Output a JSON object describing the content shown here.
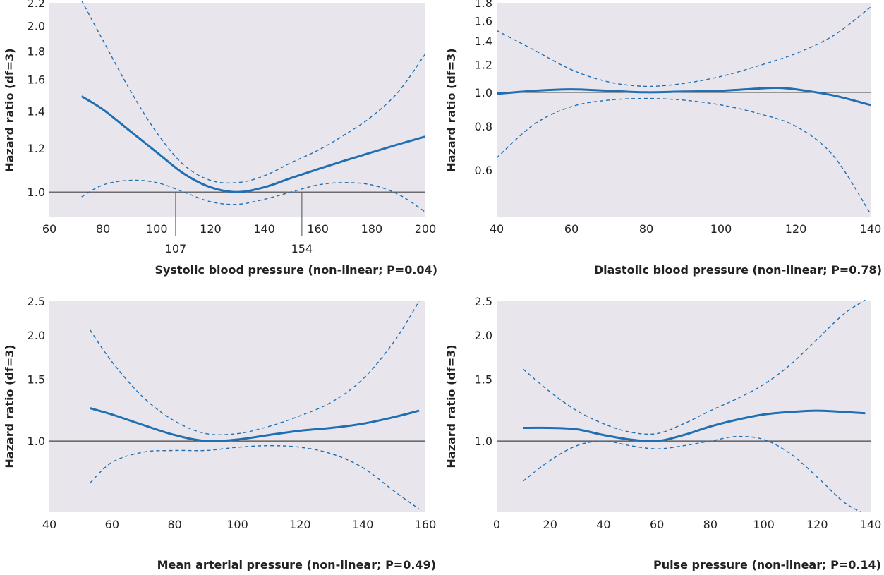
{
  "colors": {
    "panel_bg": "#e8e6ec",
    "curve": "#1f6fb2",
    "reference": "#444444",
    "text": "#222222"
  },
  "chart_data": [
    {
      "type": "line",
      "xlabel": "Systolic blood pressure (non-linear; P=0.04)",
      "ylabel": "Hazard ratio (df=3)",
      "y_scale": "log",
      "xlim": [
        60,
        200
      ],
      "ylim": [
        0.9,
        2.2
      ],
      "x_ticks": [
        60,
        80,
        100,
        120,
        140,
        160,
        180,
        200
      ],
      "y_ticks": [
        1.0,
        1.2,
        1.4,
        1.6,
        1.8,
        2.0,
        2.2
      ],
      "reference_line": 1.0,
      "annotations": [
        {
          "x": 107,
          "label": "107"
        },
        {
          "x": 154,
          "label": "154"
        }
      ],
      "series": [
        {
          "style": "solid",
          "x": [
            72,
            80,
            90,
            100,
            110,
            120,
            130,
            140,
            150,
            160,
            170,
            180,
            190,
            200
          ],
          "y": [
            1.49,
            1.41,
            1.29,
            1.18,
            1.08,
            1.02,
            1.0,
            1.02,
            1.06,
            1.1,
            1.14,
            1.18,
            1.22,
            1.26
          ]
        },
        {
          "style": "dashed",
          "x": [
            72,
            80,
            90,
            100,
            110,
            120,
            130,
            140,
            150,
            160,
            170,
            180,
            190,
            200
          ],
          "y": [
            2.22,
            1.88,
            1.53,
            1.28,
            1.12,
            1.05,
            1.04,
            1.07,
            1.13,
            1.19,
            1.27,
            1.37,
            1.52,
            1.78
          ]
        },
        {
          "style": "dashed",
          "x": [
            72,
            80,
            90,
            100,
            110,
            120,
            130,
            140,
            150,
            160,
            170,
            180,
            190,
            200
          ],
          "y": [
            0.98,
            1.03,
            1.05,
            1.04,
            1.0,
            0.96,
            0.95,
            0.97,
            1.0,
            1.03,
            1.04,
            1.03,
            0.99,
            0.92
          ]
        }
      ]
    },
    {
      "type": "line",
      "xlabel": "Diastolic blood pressure (non-linear; P=0.78)",
      "ylabel": "Hazard ratio (df=3)",
      "y_scale": "log",
      "xlim": [
        40,
        140
      ],
      "ylim": [
        0.44,
        1.8
      ],
      "x_ticks": [
        40,
        60,
        80,
        100,
        120,
        140
      ],
      "y_ticks": [
        0.6,
        0.8,
        1.0,
        1.2,
        1.4,
        1.6,
        1.8
      ],
      "reference_line": 1.0,
      "series": [
        {
          "style": "solid",
          "x": [
            40,
            50,
            60,
            70,
            80,
            90,
            100,
            110,
            115,
            120,
            130,
            140
          ],
          "y": [
            0.99,
            1.01,
            1.02,
            1.01,
            1.0,
            1.005,
            1.01,
            1.025,
            1.03,
            1.02,
            0.98,
            0.92
          ]
        },
        {
          "style": "dashed",
          "x": [
            40,
            50,
            60,
            70,
            80,
            90,
            100,
            110,
            120,
            130,
            140
          ],
          "y": [
            1.5,
            1.32,
            1.16,
            1.07,
            1.04,
            1.06,
            1.11,
            1.19,
            1.29,
            1.45,
            1.75
          ]
        },
        {
          "style": "dashed",
          "x": [
            40,
            50,
            60,
            70,
            80,
            90,
            100,
            110,
            120,
            130,
            140
          ],
          "y": [
            0.65,
            0.81,
            0.91,
            0.95,
            0.96,
            0.95,
            0.92,
            0.87,
            0.8,
            0.66,
            0.45
          ]
        }
      ]
    },
    {
      "type": "line",
      "xlabel": "Mean arterial pressure (non-linear; P=0.49)",
      "ylabel": "Hazard ratio (df=3)",
      "y_scale": "log",
      "xlim": [
        40,
        160
      ],
      "ylim": [
        0.63,
        2.5
      ],
      "x_ticks": [
        40,
        60,
        80,
        100,
        120,
        140,
        160
      ],
      "y_ticks": [
        1.0,
        1.5,
        2.0,
        2.5
      ],
      "reference_line": 1.0,
      "series": [
        {
          "style": "solid",
          "x": [
            53,
            60,
            70,
            80,
            90,
            100,
            110,
            120,
            130,
            140,
            150,
            158
          ],
          "y": [
            1.24,
            1.19,
            1.11,
            1.04,
            1.0,
            1.01,
            1.04,
            1.07,
            1.09,
            1.12,
            1.17,
            1.22
          ]
        },
        {
          "style": "dashed",
          "x": [
            53,
            60,
            70,
            80,
            90,
            100,
            110,
            120,
            130,
            140,
            150,
            158
          ],
          "y": [
            2.07,
            1.68,
            1.33,
            1.14,
            1.05,
            1.05,
            1.1,
            1.18,
            1.29,
            1.5,
            1.92,
            2.5
          ]
        },
        {
          "style": "dashed",
          "x": [
            53,
            60,
            70,
            80,
            90,
            100,
            110,
            120,
            130,
            140,
            150,
            158
          ],
          "y": [
            0.76,
            0.87,
            0.93,
            0.94,
            0.94,
            0.96,
            0.97,
            0.96,
            0.92,
            0.84,
            0.72,
            0.64
          ]
        }
      ]
    },
    {
      "type": "line",
      "xlabel": "Pulse pressure (non-linear; P=0.14)",
      "ylabel": "Hazard ratio (df=3)",
      "y_scale": "log",
      "xlim": [
        0,
        140
      ],
      "ylim": [
        0.63,
        2.5
      ],
      "x_ticks": [
        0,
        20,
        40,
        60,
        80,
        100,
        120,
        140
      ],
      "y_ticks": [
        1.0,
        1.5,
        2.0,
        2.5
      ],
      "reference_line": 1.0,
      "series": [
        {
          "style": "solid",
          "x": [
            10,
            20,
            30,
            40,
            50,
            60,
            70,
            80,
            90,
            100,
            110,
            120,
            130,
            138
          ],
          "y": [
            1.09,
            1.09,
            1.08,
            1.04,
            1.01,
            1.0,
            1.04,
            1.1,
            1.15,
            1.19,
            1.21,
            1.22,
            1.21,
            1.2
          ]
        },
        {
          "style": "dashed",
          "x": [
            10,
            20,
            30,
            40,
            50,
            60,
            70,
            80,
            90,
            100,
            110,
            120,
            130,
            138
          ],
          "y": [
            1.6,
            1.38,
            1.22,
            1.12,
            1.06,
            1.05,
            1.12,
            1.22,
            1.32,
            1.45,
            1.65,
            1.95,
            2.3,
            2.52
          ]
        },
        {
          "style": "dashed",
          "x": [
            10,
            20,
            30,
            40,
            50,
            60,
            70,
            80,
            90,
            100,
            110,
            120,
            130,
            138
          ],
          "y": [
            0.77,
            0.88,
            0.97,
            1.0,
            0.97,
            0.95,
            0.97,
            1.0,
            1.03,
            1.01,
            0.92,
            0.79,
            0.67,
            0.62
          ]
        }
      ]
    }
  ]
}
